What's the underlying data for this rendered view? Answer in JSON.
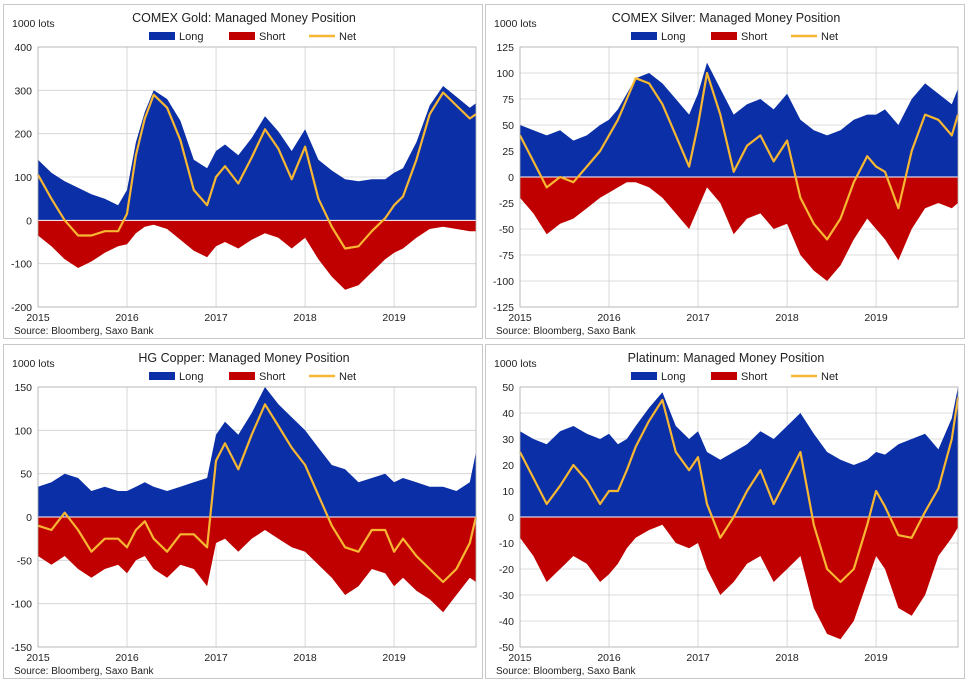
{
  "legend": {
    "long": "Long",
    "short": "Short",
    "net": "Net"
  },
  "colors": {
    "long": "#0a2fa6",
    "short": "#c00000",
    "net": "#f7b733",
    "grid": "#d0d0d0"
  },
  "source": "Source: Bloomberg, Saxo Bank",
  "chart_data": [
    {
      "type": "area",
      "title": "COMEX Gold: Managed Money Position",
      "ylabel": "1000 lots",
      "ylim": [
        -200,
        400
      ],
      "yticks": [
        400,
        300,
        200,
        100,
        0,
        -100,
        -200
      ],
      "xlabels": [
        "2015",
        "2016",
        "2017",
        "2018",
        "2019"
      ],
      "xrange": [
        2015.0,
        2019.92
      ],
      "series": [
        {
          "name": "Long",
          "x": [
            2015.0,
            2015.15,
            2015.3,
            2015.45,
            2015.6,
            2015.75,
            2015.9,
            2016.0,
            2016.1,
            2016.2,
            2016.3,
            2016.45,
            2016.6,
            2016.75,
            2016.9,
            2017.0,
            2017.1,
            2017.25,
            2017.4,
            2017.55,
            2017.7,
            2017.85,
            2018.0,
            2018.15,
            2018.3,
            2018.45,
            2018.6,
            2018.75,
            2018.9,
            2019.0,
            2019.1,
            2019.25,
            2019.4,
            2019.55,
            2019.7,
            2019.85,
            2019.92
          ],
          "values": [
            140,
            110,
            90,
            75,
            60,
            50,
            35,
            70,
            180,
            250,
            300,
            280,
            230,
            140,
            120,
            160,
            175,
            150,
            190,
            240,
            205,
            160,
            210,
            140,
            115,
            95,
            90,
            95,
            95,
            110,
            120,
            180,
            265,
            310,
            285,
            260,
            270
          ]
        },
        {
          "name": "Short",
          "x": [
            2015.0,
            2015.15,
            2015.3,
            2015.45,
            2015.6,
            2015.75,
            2015.9,
            2016.0,
            2016.1,
            2016.2,
            2016.3,
            2016.45,
            2016.6,
            2016.75,
            2016.9,
            2017.0,
            2017.1,
            2017.25,
            2017.4,
            2017.55,
            2017.7,
            2017.85,
            2018.0,
            2018.15,
            2018.3,
            2018.45,
            2018.6,
            2018.75,
            2018.9,
            2019.0,
            2019.1,
            2019.25,
            2019.4,
            2019.55,
            2019.7,
            2019.85,
            2019.92
          ],
          "values": [
            -35,
            -60,
            -90,
            -110,
            -95,
            -75,
            -60,
            -55,
            -30,
            -15,
            -10,
            -20,
            -45,
            -70,
            -85,
            -60,
            -50,
            -65,
            -45,
            -30,
            -40,
            -65,
            -40,
            -90,
            -130,
            -160,
            -150,
            -120,
            -90,
            -75,
            -65,
            -40,
            -20,
            -15,
            -20,
            -25,
            -25
          ]
        },
        {
          "name": "Net",
          "x": [
            2015.0,
            2015.15,
            2015.3,
            2015.45,
            2015.6,
            2015.75,
            2015.9,
            2016.0,
            2016.1,
            2016.2,
            2016.3,
            2016.45,
            2016.6,
            2016.75,
            2016.9,
            2017.0,
            2017.1,
            2017.25,
            2017.4,
            2017.55,
            2017.7,
            2017.85,
            2018.0,
            2018.15,
            2018.3,
            2018.45,
            2018.6,
            2018.75,
            2018.9,
            2019.0,
            2019.1,
            2019.25,
            2019.4,
            2019.55,
            2019.7,
            2019.85,
            2019.92
          ],
          "values": [
            105,
            50,
            0,
            -35,
            -35,
            -25,
            -25,
            15,
            150,
            235,
            290,
            260,
            185,
            70,
            35,
            100,
            125,
            85,
            145,
            210,
            165,
            95,
            170,
            50,
            -15,
            -65,
            -60,
            -25,
            5,
            35,
            55,
            140,
            245,
            295,
            265,
            235,
            245
          ]
        }
      ]
    },
    {
      "type": "area",
      "title": "COMEX Silver: Managed Money Position",
      "ylabel": "1000 lots",
      "ylim": [
        -125,
        125
      ],
      "yticks": [
        125,
        100,
        75,
        50,
        25,
        0,
        -25,
        -50,
        -75,
        -100,
        -125
      ],
      "xlabels": [
        "2015",
        "2016",
        "2017",
        "2018",
        "2019"
      ],
      "xrange": [
        2015.0,
        2019.92
      ],
      "series": [
        {
          "name": "Long",
          "x": [
            2015.0,
            2015.15,
            2015.3,
            2015.45,
            2015.6,
            2015.75,
            2015.9,
            2016.0,
            2016.1,
            2016.2,
            2016.3,
            2016.45,
            2016.6,
            2016.75,
            2016.9,
            2017.0,
            2017.1,
            2017.25,
            2017.4,
            2017.55,
            2017.7,
            2017.85,
            2018.0,
            2018.15,
            2018.3,
            2018.45,
            2018.6,
            2018.75,
            2018.9,
            2019.0,
            2019.1,
            2019.25,
            2019.4,
            2019.55,
            2019.7,
            2019.85,
            2019.92
          ],
          "values": [
            50,
            45,
            40,
            45,
            35,
            40,
            50,
            55,
            65,
            80,
            95,
            100,
            90,
            75,
            60,
            80,
            110,
            85,
            60,
            70,
            75,
            65,
            80,
            55,
            45,
            40,
            45,
            55,
            60,
            60,
            65,
            50,
            75,
            90,
            80,
            70,
            85
          ]
        },
        {
          "name": "Short",
          "x": [
            2015.0,
            2015.15,
            2015.3,
            2015.45,
            2015.6,
            2015.75,
            2015.9,
            2016.0,
            2016.1,
            2016.2,
            2016.3,
            2016.45,
            2016.6,
            2016.75,
            2016.9,
            2017.0,
            2017.1,
            2017.25,
            2017.4,
            2017.55,
            2017.7,
            2017.85,
            2018.0,
            2018.15,
            2018.3,
            2018.45,
            2018.6,
            2018.75,
            2018.9,
            2019.0,
            2019.1,
            2019.25,
            2019.4,
            2019.55,
            2019.7,
            2019.85,
            2019.92
          ],
          "values": [
            -20,
            -35,
            -55,
            -45,
            -40,
            -30,
            -20,
            -15,
            -10,
            -5,
            -5,
            -10,
            -20,
            -35,
            -50,
            -30,
            -10,
            -25,
            -55,
            -40,
            -35,
            -50,
            -45,
            -75,
            -90,
            -100,
            -85,
            -60,
            -40,
            -50,
            -60,
            -80,
            -50,
            -30,
            -25,
            -30,
            -25
          ]
        },
        {
          "name": "Net",
          "x": [
            2015.0,
            2015.15,
            2015.3,
            2015.45,
            2015.6,
            2015.75,
            2015.9,
            2016.0,
            2016.1,
            2016.2,
            2016.3,
            2016.45,
            2016.6,
            2016.75,
            2016.9,
            2017.0,
            2017.1,
            2017.25,
            2017.4,
            2017.55,
            2017.7,
            2017.85,
            2018.0,
            2018.15,
            2018.3,
            2018.45,
            2018.6,
            2018.75,
            2018.9,
            2019.0,
            2019.1,
            2019.25,
            2019.4,
            2019.55,
            2019.7,
            2019.85,
            2019.92
          ],
          "values": [
            40,
            15,
            -10,
            0,
            -5,
            10,
            25,
            40,
            55,
            75,
            95,
            90,
            70,
            40,
            10,
            50,
            100,
            60,
            5,
            30,
            40,
            15,
            35,
            -20,
            -45,
            -60,
            -40,
            -5,
            20,
            10,
            5,
            -30,
            25,
            60,
            55,
            40,
            60
          ]
        }
      ]
    },
    {
      "type": "area",
      "title": "HG Copper: Managed Money Position",
      "ylabel": "1000 lots",
      "ylim": [
        -150,
        150
      ],
      "yticks": [
        150,
        100,
        50,
        0,
        -50,
        -100,
        -150
      ],
      "xlabels": [
        "2015",
        "2016",
        "2017",
        "2018",
        "2019"
      ],
      "xrange": [
        2015.0,
        2019.92
      ],
      "series": [
        {
          "name": "Long",
          "x": [
            2015.0,
            2015.15,
            2015.3,
            2015.45,
            2015.6,
            2015.75,
            2015.9,
            2016.0,
            2016.1,
            2016.2,
            2016.3,
            2016.45,
            2016.6,
            2016.75,
            2016.9,
            2017.0,
            2017.1,
            2017.25,
            2017.4,
            2017.55,
            2017.7,
            2017.85,
            2018.0,
            2018.15,
            2018.3,
            2018.45,
            2018.6,
            2018.75,
            2018.9,
            2019.0,
            2019.1,
            2019.25,
            2019.4,
            2019.55,
            2019.7,
            2019.85,
            2019.92
          ],
          "values": [
            35,
            40,
            50,
            45,
            30,
            35,
            30,
            30,
            35,
            40,
            35,
            30,
            35,
            40,
            45,
            95,
            110,
            95,
            120,
            150,
            130,
            115,
            100,
            80,
            60,
            55,
            40,
            45,
            50,
            40,
            45,
            40,
            35,
            35,
            30,
            40,
            75
          ]
        },
        {
          "name": "Short",
          "x": [
            2015.0,
            2015.15,
            2015.3,
            2015.45,
            2015.6,
            2015.75,
            2015.9,
            2016.0,
            2016.1,
            2016.2,
            2016.3,
            2016.45,
            2016.6,
            2016.75,
            2016.9,
            2017.0,
            2017.1,
            2017.25,
            2017.4,
            2017.55,
            2017.7,
            2017.85,
            2018.0,
            2018.15,
            2018.3,
            2018.45,
            2018.6,
            2018.75,
            2018.9,
            2019.0,
            2019.1,
            2019.25,
            2019.4,
            2019.55,
            2019.7,
            2019.85,
            2019.92
          ],
          "values": [
            -45,
            -55,
            -45,
            -60,
            -70,
            -60,
            -55,
            -65,
            -50,
            -45,
            -60,
            -70,
            -55,
            -60,
            -80,
            -30,
            -25,
            -40,
            -25,
            -15,
            -25,
            -35,
            -40,
            -55,
            -70,
            -90,
            -80,
            -60,
            -65,
            -80,
            -70,
            -85,
            -95,
            -110,
            -90,
            -70,
            -75
          ]
        },
        {
          "name": "Net",
          "x": [
            2015.0,
            2015.15,
            2015.3,
            2015.45,
            2015.6,
            2015.75,
            2015.9,
            2016.0,
            2016.1,
            2016.2,
            2016.3,
            2016.45,
            2016.6,
            2016.75,
            2016.9,
            2017.0,
            2017.1,
            2017.25,
            2017.4,
            2017.55,
            2017.7,
            2017.85,
            2018.0,
            2018.15,
            2018.3,
            2018.45,
            2018.6,
            2018.75,
            2018.9,
            2019.0,
            2019.1,
            2019.25,
            2019.4,
            2019.55,
            2019.7,
            2019.85,
            2019.92
          ],
          "values": [
            -10,
            -15,
            5,
            -15,
            -40,
            -25,
            -25,
            -35,
            -15,
            -5,
            -25,
            -40,
            -20,
            -20,
            -35,
            65,
            85,
            55,
            95,
            130,
            105,
            80,
            60,
            25,
            -10,
            -35,
            -40,
            -15,
            -15,
            -40,
            -25,
            -45,
            -60,
            -75,
            -60,
            -30,
            0
          ]
        }
      ]
    },
    {
      "type": "area",
      "title": "Platinum: Managed Money Position",
      "ylabel": "1000 lots",
      "ylim": [
        -50,
        50
      ],
      "yticks": [
        50,
        40,
        30,
        20,
        10,
        0,
        -10,
        -20,
        -30,
        -40,
        -50
      ],
      "xlabels": [
        "2015",
        "2016",
        "2017",
        "2018",
        "2019"
      ],
      "xrange": [
        2015.0,
        2019.92
      ],
      "series": [
        {
          "name": "Long",
          "x": [
            2015.0,
            2015.15,
            2015.3,
            2015.45,
            2015.6,
            2015.75,
            2015.9,
            2016.0,
            2016.1,
            2016.2,
            2016.3,
            2016.45,
            2016.6,
            2016.75,
            2016.9,
            2017.0,
            2017.1,
            2017.25,
            2017.4,
            2017.55,
            2017.7,
            2017.85,
            2018.0,
            2018.15,
            2018.3,
            2018.45,
            2018.6,
            2018.75,
            2018.9,
            2019.0,
            2019.1,
            2019.25,
            2019.4,
            2019.55,
            2019.7,
            2019.85,
            2019.92
          ],
          "values": [
            33,
            30,
            28,
            33,
            35,
            32,
            30,
            32,
            28,
            30,
            35,
            42,
            48,
            35,
            30,
            33,
            25,
            22,
            25,
            28,
            33,
            30,
            35,
            40,
            32,
            25,
            22,
            20,
            22,
            25,
            24,
            28,
            30,
            32,
            26,
            38,
            50
          ]
        },
        {
          "name": "Short",
          "x": [
            2015.0,
            2015.15,
            2015.3,
            2015.45,
            2015.6,
            2015.75,
            2015.9,
            2016.0,
            2016.1,
            2016.2,
            2016.3,
            2016.45,
            2016.6,
            2016.75,
            2016.9,
            2017.0,
            2017.1,
            2017.25,
            2017.4,
            2017.55,
            2017.7,
            2017.85,
            2018.0,
            2018.15,
            2018.3,
            2018.45,
            2018.6,
            2018.75,
            2018.9,
            2019.0,
            2019.1,
            2019.25,
            2019.4,
            2019.55,
            2019.7,
            2019.85,
            2019.92
          ],
          "values": [
            -8,
            -15,
            -25,
            -20,
            -15,
            -18,
            -25,
            -22,
            -18,
            -12,
            -8,
            -5,
            -3,
            -10,
            -12,
            -10,
            -20,
            -30,
            -25,
            -18,
            -15,
            -25,
            -20,
            -15,
            -35,
            -45,
            -47,
            -40,
            -25,
            -15,
            -20,
            -35,
            -38,
            -30,
            -15,
            -8,
            -4
          ]
        },
        {
          "name": "Net",
          "x": [
            2015.0,
            2015.15,
            2015.3,
            2015.45,
            2015.6,
            2015.75,
            2015.9,
            2016.0,
            2016.1,
            2016.2,
            2016.3,
            2016.45,
            2016.6,
            2016.75,
            2016.9,
            2017.0,
            2017.1,
            2017.25,
            2017.4,
            2017.55,
            2017.7,
            2017.85,
            2018.0,
            2018.15,
            2018.3,
            2018.45,
            2018.6,
            2018.75,
            2018.9,
            2019.0,
            2019.1,
            2019.25,
            2019.4,
            2019.55,
            2019.7,
            2019.85,
            2019.92
          ],
          "values": [
            25,
            15,
            5,
            12,
            20,
            14,
            5,
            10,
            10,
            18,
            27,
            37,
            45,
            25,
            18,
            23,
            5,
            -8,
            0,
            10,
            18,
            5,
            15,
            25,
            -3,
            -20,
            -25,
            -20,
            -3,
            10,
            4,
            -7,
            -8,
            2,
            11,
            30,
            46
          ]
        }
      ]
    }
  ]
}
